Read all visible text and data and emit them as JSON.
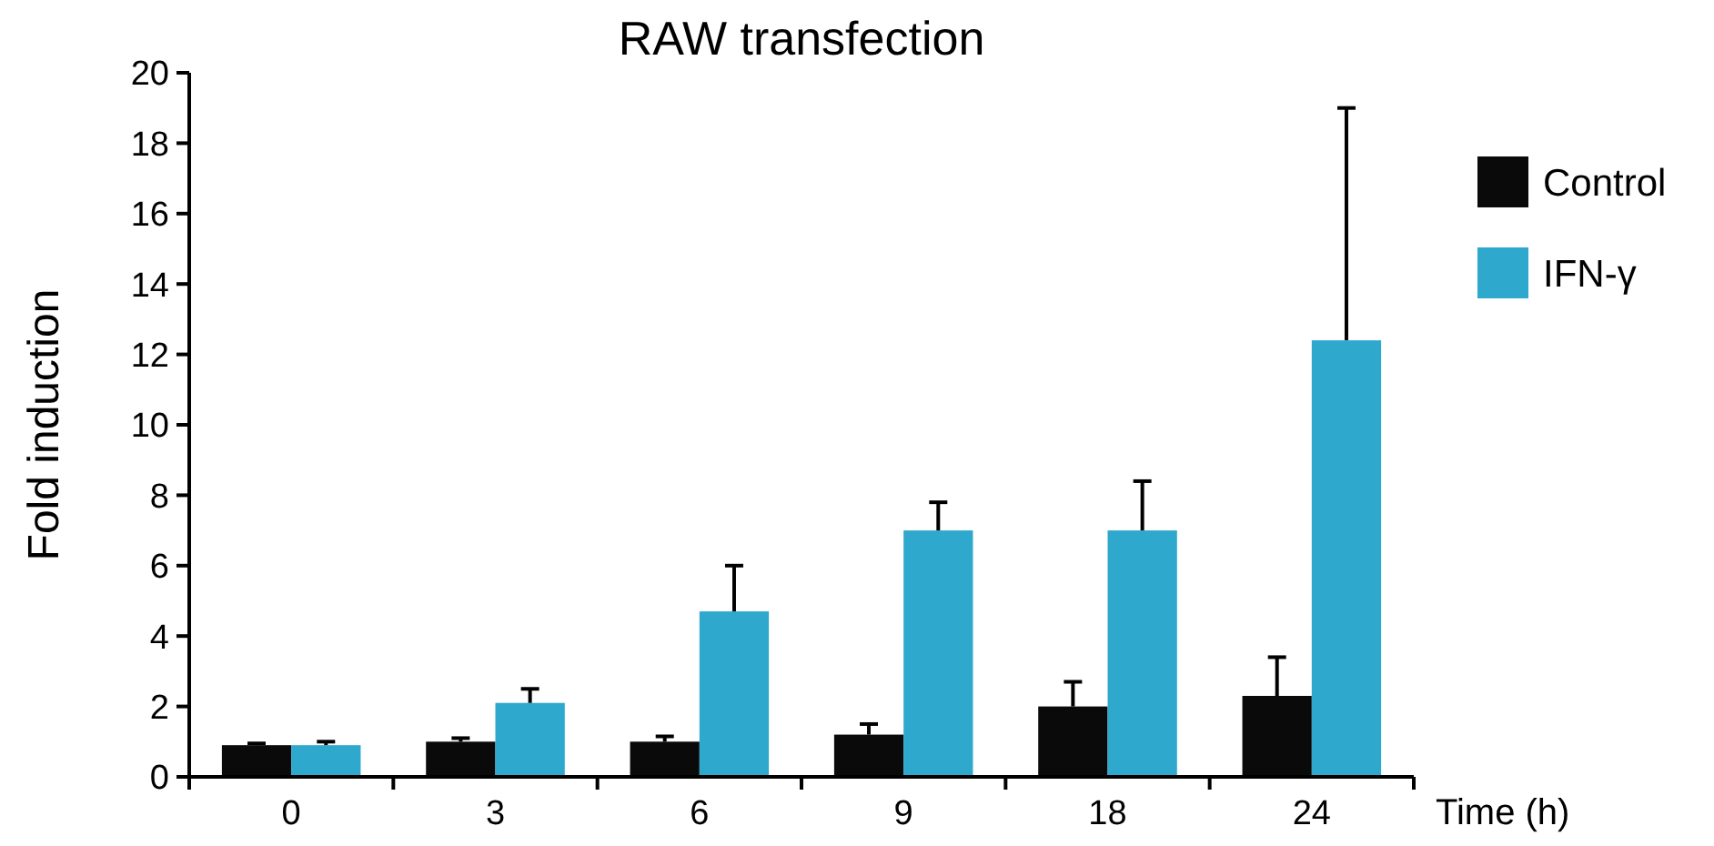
{
  "chart_data": {
    "type": "bar",
    "title": "RAW transfection",
    "xlabel": "Time (h)",
    "ylabel": "Fold induction",
    "categories": [
      "0",
      "3",
      "6",
      "9",
      "18",
      "24"
    ],
    "series": [
      {
        "name": "Control",
        "color": "#0a0a0a",
        "values": [
          0.9,
          1.0,
          1.0,
          1.2,
          2.0,
          2.3
        ],
        "errors": [
          0.05,
          0.1,
          0.15,
          0.3,
          0.7,
          1.1
        ]
      },
      {
        "name": "IFN-γ",
        "color": "#2ea8cc",
        "values": [
          0.9,
          2.1,
          4.7,
          7.0,
          7.0,
          12.4
        ],
        "errors": [
          0.1,
          0.4,
          1.3,
          0.8,
          1.4,
          6.6
        ]
      }
    ],
    "ylim": [
      0,
      20
    ],
    "yticks": [
      0,
      2,
      4,
      6,
      8,
      10,
      12,
      14,
      16,
      18,
      20
    ],
    "grid": false,
    "legend": "right"
  }
}
